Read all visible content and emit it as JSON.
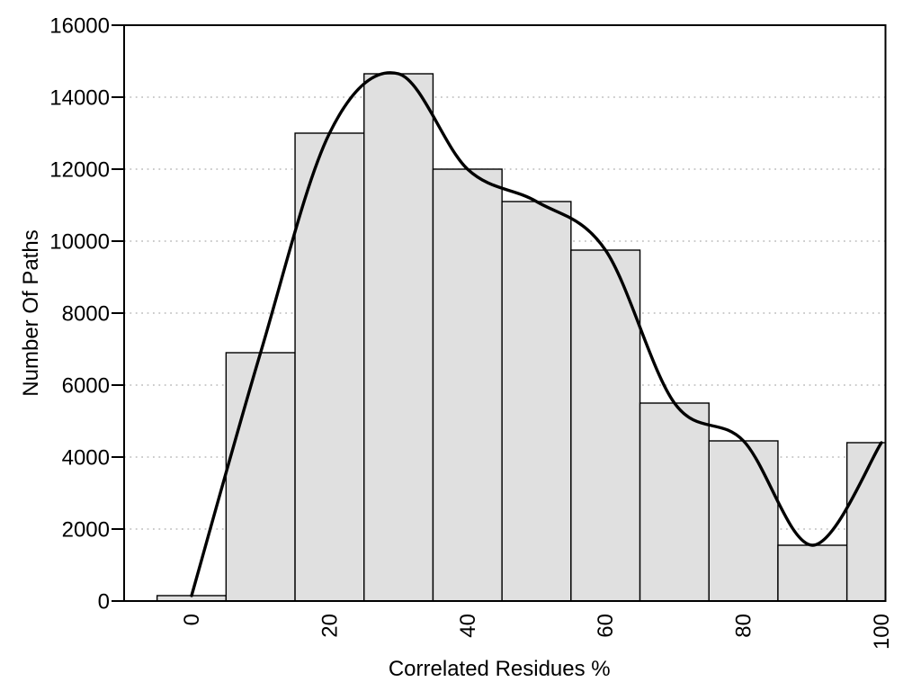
{
  "chart_data": {
    "type": "bar",
    "title": "",
    "xlabel": "Correlated Residues %",
    "ylabel": "Number Of Paths",
    "categories": [
      0,
      10,
      20,
      30,
      40,
      50,
      60,
      70,
      80,
      90,
      100
    ],
    "bin_width": 10,
    "series": [
      {
        "name": "path-count-histogram",
        "type": "bar",
        "values": [
          150,
          6900,
          13000,
          14650,
          12000,
          11100,
          9750,
          5500,
          4450,
          1550,
          4400
        ]
      },
      {
        "name": "smooth-trend-curve",
        "type": "line",
        "values": [
          150,
          6900,
          13000,
          14650,
          12000,
          11100,
          9750,
          5500,
          4450,
          1550,
          4400
        ]
      }
    ],
    "x_ticks": [
      0,
      20,
      40,
      60,
      80,
      100
    ],
    "y_ticks": [
      0,
      2000,
      4000,
      6000,
      8000,
      10000,
      12000,
      14000,
      16000
    ],
    "xlim": [
      -9.8,
      100.5
    ],
    "ylim": [
      0,
      16000
    ],
    "grid": "horizontal-dotted",
    "legend": "none",
    "colors": {
      "bar_fill": "#e0e0e0",
      "bar_stroke": "#000000",
      "curve": "#000000",
      "grid": "#bcbcbc",
      "frame": "#000000",
      "text": "#000000",
      "background": "#ffffff"
    }
  }
}
